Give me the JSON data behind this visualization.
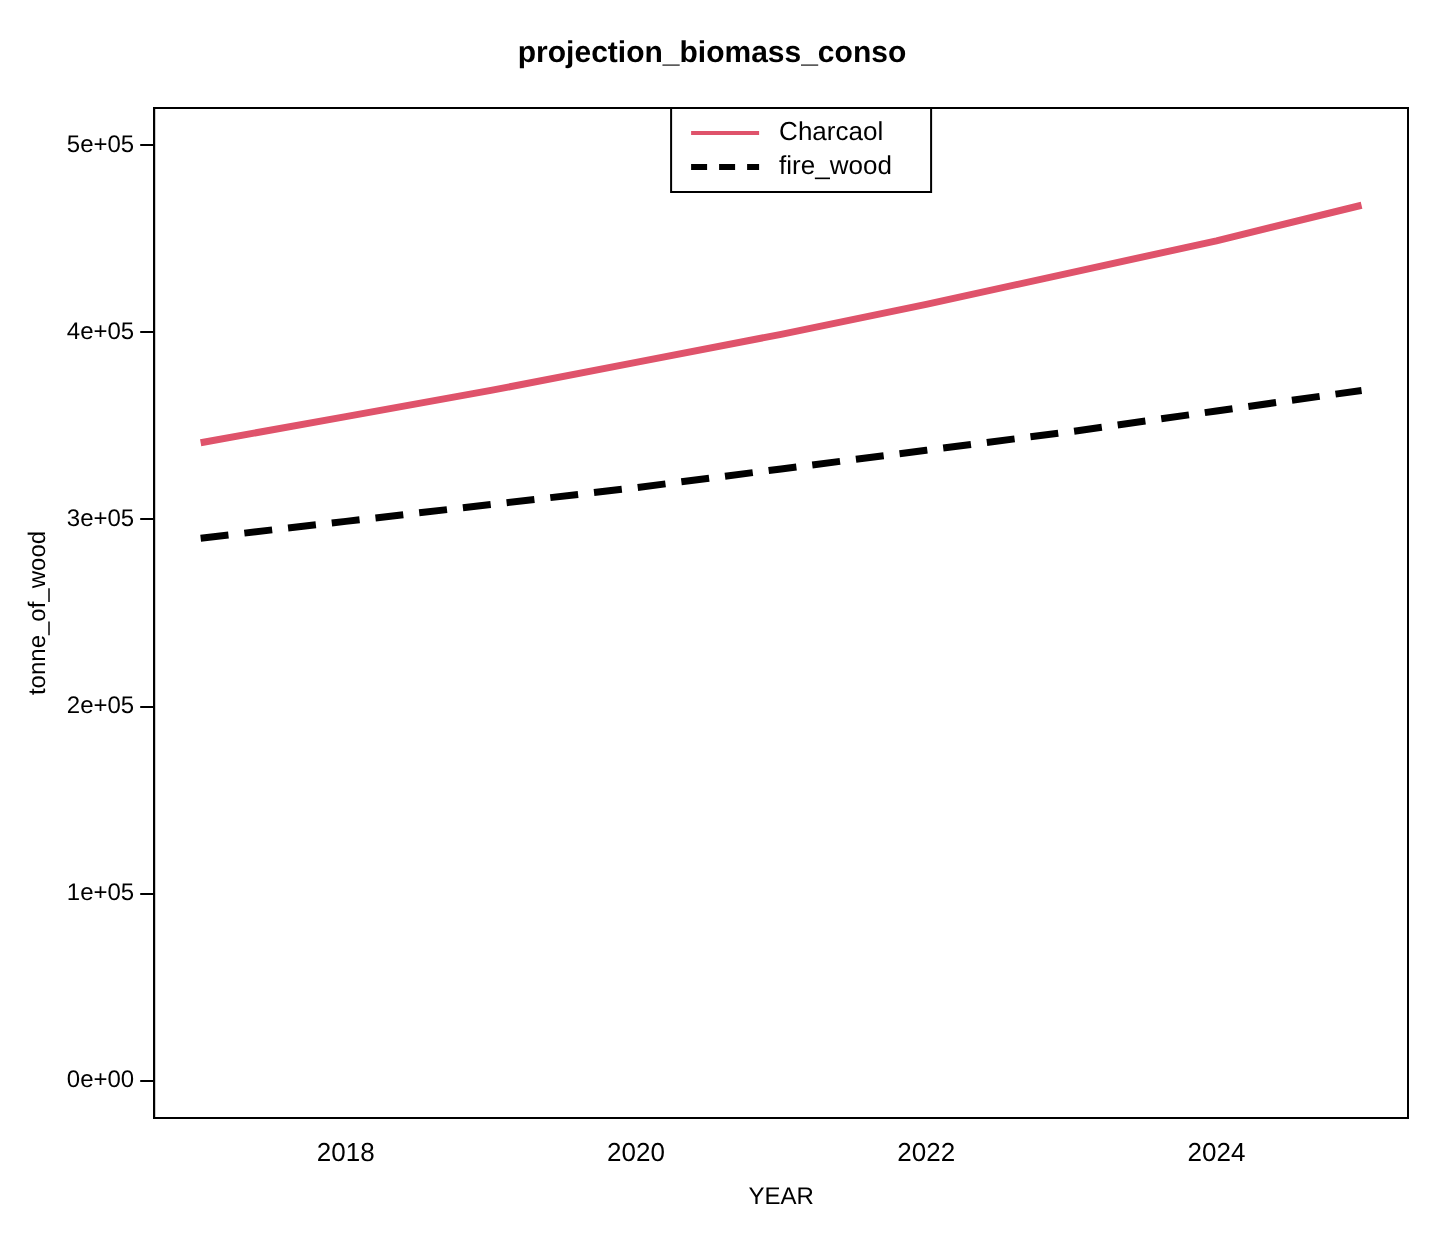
{
  "chart_data": {
    "type": "line",
    "title": "projection_biomass_conso",
    "xlabel": "YEAR",
    "ylabel": "tonne_of_wood",
    "x": [
      2017,
      2018,
      2019,
      2020,
      2021,
      2022,
      2023,
      2024,
      2025
    ],
    "series": [
      {
        "name": "Charcaol",
        "color": "#df536b",
        "line_style": "solid",
        "values": [
          341000,
          355000,
          369000,
          384000,
          399000,
          415000,
          432000,
          449000,
          468000
        ]
      },
      {
        "name": "fire_wood",
        "color": "#000000",
        "line_style": "dashed",
        "values": [
          290000,
          299000,
          308000,
          317000,
          327000,
          337000,
          347000,
          358000,
          369000
        ]
      }
    ],
    "xlim": [
      2016.68,
      2025.32
    ],
    "xticks": [
      2018,
      2020,
      2022,
      2024
    ],
    "ylim": [
      -20000,
      520000
    ],
    "yticks": [
      {
        "value": 0,
        "label": "0e+00"
      },
      {
        "value": 100000,
        "label": "1e+05"
      },
      {
        "value": 200000,
        "label": "2e+05"
      },
      {
        "value": 300000,
        "label": "3e+05"
      },
      {
        "value": 400000,
        "label": "4e+05"
      },
      {
        "value": 500000,
        "label": "5e+05"
      }
    ],
    "grid": false,
    "legend": "top",
    "marker": "none"
  }
}
